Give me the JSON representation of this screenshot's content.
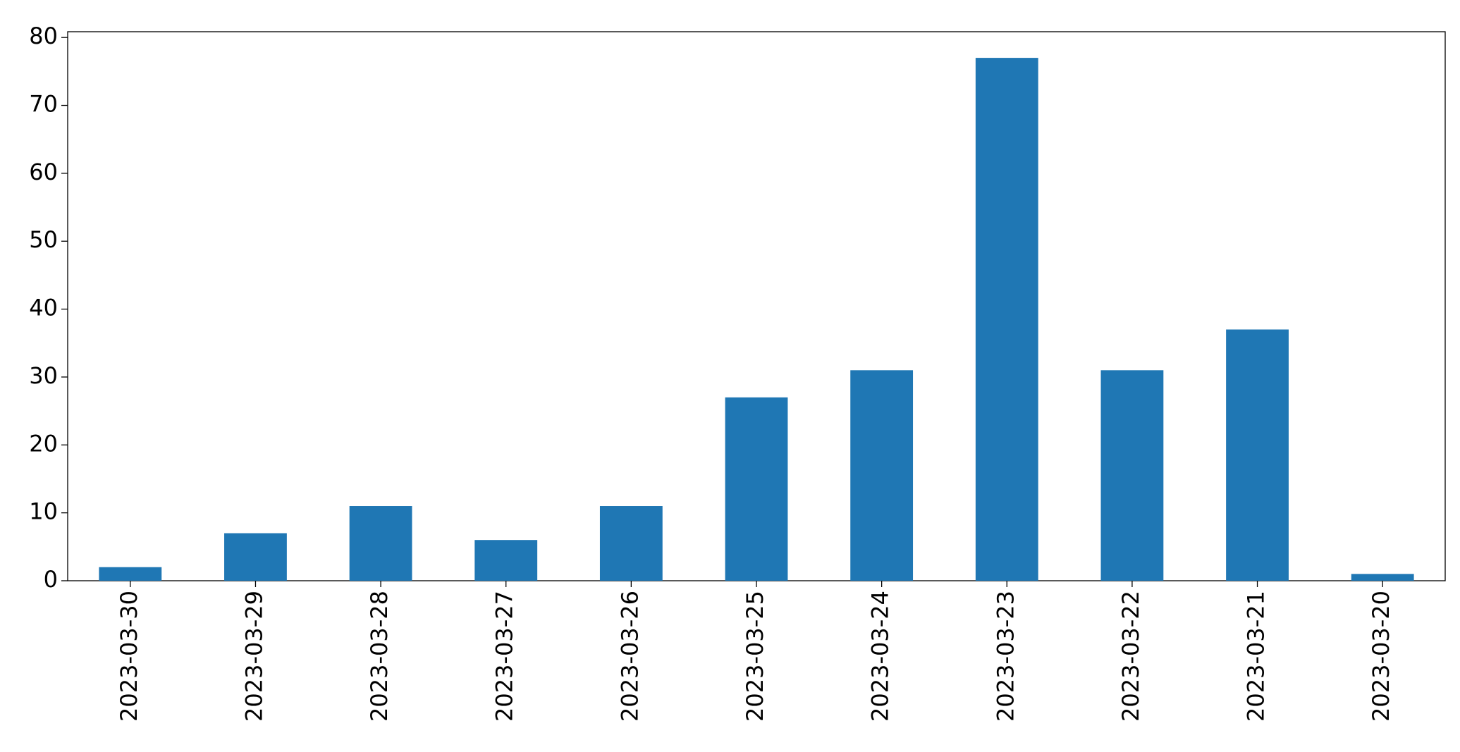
{
  "chart_data": {
    "type": "bar",
    "categories": [
      "2023-03-30",
      "2023-03-29",
      "2023-03-28",
      "2023-03-27",
      "2023-03-26",
      "2023-03-25",
      "2023-03-24",
      "2023-03-23",
      "2023-03-22",
      "2023-03-21",
      "2023-03-20"
    ],
    "values": [
      2,
      7,
      11,
      6,
      11,
      27,
      31,
      77,
      31,
      37,
      1
    ],
    "color": "#1f77b4",
    "ylim": [
      0,
      80.85
    ],
    "yticks": [
      0,
      10,
      20,
      30,
      40,
      50,
      60,
      70,
      80
    ],
    "grid": false
  }
}
